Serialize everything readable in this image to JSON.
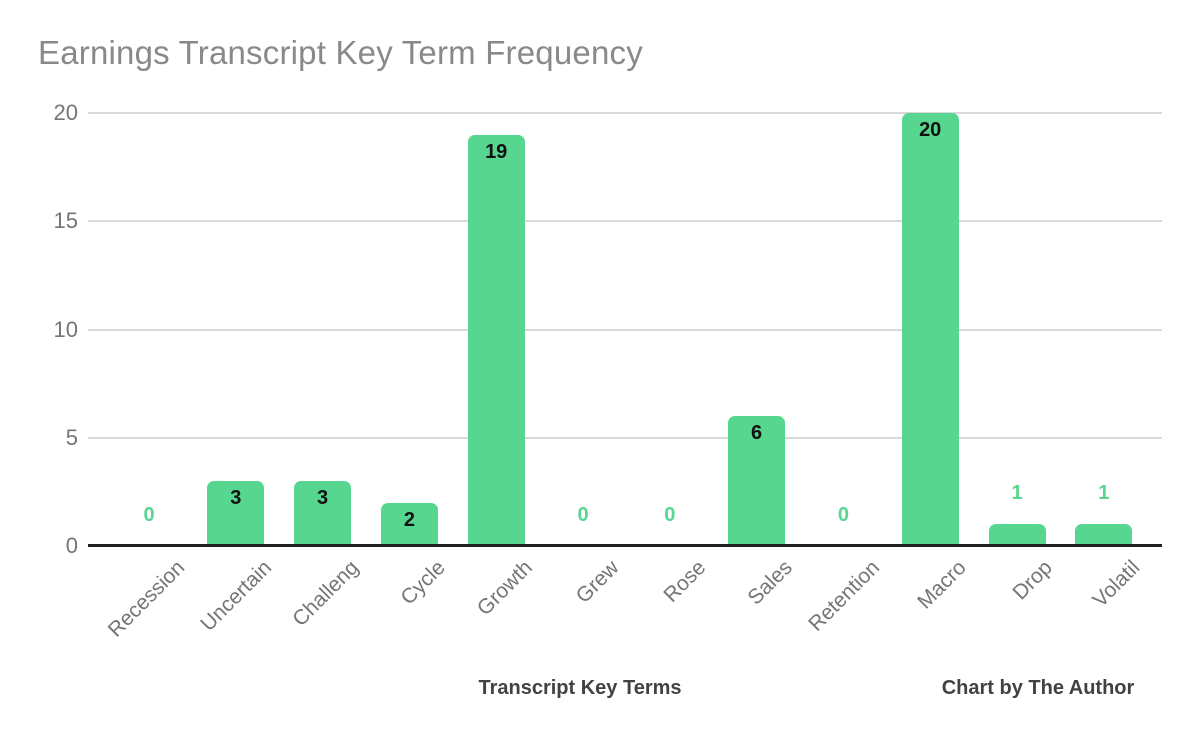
{
  "chart_data": {
    "type": "bar",
    "title": "Earnings Transcript Key Term Frequency",
    "categories": [
      "Recession",
      "Uncertain",
      "Challeng",
      "Cycle",
      "Growth",
      "Grew",
      "Rose",
      "Sales",
      "Retention",
      "Macro",
      "Drop",
      "Volatil"
    ],
    "values": [
      0,
      3,
      3,
      2,
      19,
      0,
      0,
      6,
      0,
      20,
      1,
      1
    ],
    "xlabel": "Transcript Key Terms",
    "footer_right": "Chart by The Author",
    "ylim": [
      0,
      20
    ],
    "yticks": [
      0,
      5,
      10,
      15,
      20
    ],
    "grid": true,
    "legend": "none",
    "colors": {
      "bar": "#57d68f",
      "label_inside": "#111111",
      "label_outside": "#57d68f",
      "title": "#898989",
      "axis_text": "#757575",
      "gridline": "#d9d9d9",
      "baseline": "#212121",
      "footer_text": "#424242"
    }
  }
}
